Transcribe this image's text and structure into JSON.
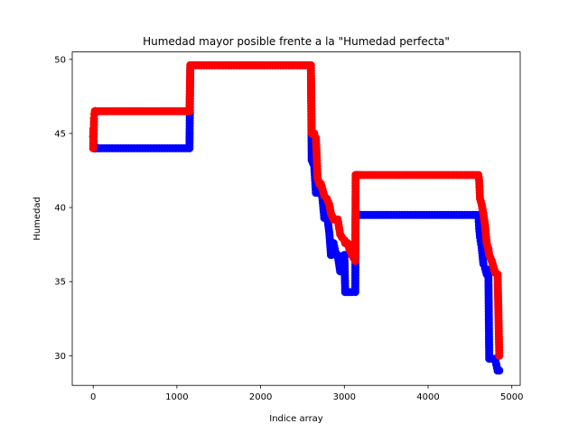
{
  "chart_data": {
    "type": "line",
    "title": "Humedad mayor posible frente a la \"Humedad perfecta\"",
    "xlabel": "Indice array",
    "ylabel": "Humedad",
    "xlim": [
      -250,
      5100
    ],
    "ylim": [
      28,
      50.5
    ],
    "xticks": [
      0,
      1000,
      2000,
      3000,
      4000,
      5000
    ],
    "yticks": [
      30,
      35,
      40,
      45,
      50
    ],
    "grid": false,
    "legend": "none",
    "series": [
      {
        "color": "#0000ff",
        "marker": "circle",
        "x": [
          0,
          3,
          6,
          10,
          15,
          20,
          25,
          30,
          1150,
          1160,
          2600,
          2610,
          2640,
          2660,
          2680,
          2700,
          2720,
          2740,
          2760,
          2790,
          2820,
          2840,
          2870,
          2900,
          2920,
          2950,
          2970,
          3000,
          3010,
          3040,
          3060,
          3090,
          3130,
          3135,
          3150,
          3160,
          3180,
          3200,
          4600,
          4610,
          4620,
          4640,
          4660,
          4680,
          4700,
          4720,
          4730,
          4760,
          4800,
          4830,
          4850
        ],
        "y": [
          44.8,
          45.0,
          44.5,
          44.2,
          44.0,
          44.0,
          44.0,
          44.0,
          44.0,
          49.6,
          49.6,
          43.2,
          42.8,
          41.0,
          41.0,
          41.5,
          41.5,
          40.5,
          39.3,
          39.6,
          38.3,
          36.8,
          37.6,
          36.8,
          36.8,
          35.7,
          35.7,
          36.8,
          34.3,
          34.3,
          34.3,
          34.3,
          34.3,
          39.8,
          39.5,
          39.5,
          39.5,
          39.5,
          39.5,
          38.6,
          38.0,
          37.3,
          36.2,
          35.9,
          35.5,
          35.8,
          29.8,
          29.8,
          29.8,
          29.0,
          29.0
        ]
      },
      {
        "color": "#ff0000",
        "marker": "circle",
        "x": [
          0,
          3,
          6,
          10,
          15,
          20,
          25,
          30,
          1150,
          1160,
          2600,
          2610,
          2640,
          2660,
          2680,
          2700,
          2720,
          2740,
          2760,
          2790,
          2820,
          2840,
          2870,
          2900,
          2920,
          2950,
          2970,
          3000,
          3010,
          3040,
          3060,
          3090,
          3130,
          3135,
          3150,
          3160,
          3180,
          3200,
          4600,
          4610,
          4620,
          4640,
          4660,
          4680,
          4700,
          4720,
          4730,
          4760,
          4800,
          4830,
          4850
        ],
        "y": [
          44.0,
          45.3,
          44.8,
          46.0,
          46.3,
          46.5,
          46.5,
          46.5,
          46.5,
          49.6,
          49.6,
          45.0,
          45.0,
          44.7,
          42.0,
          41.6,
          41.6,
          41.2,
          40.8,
          40.6,
          40.2,
          39.6,
          39.2,
          39.2,
          39.2,
          38.2,
          38.0,
          37.8,
          37.6,
          37.6,
          37.2,
          36.8,
          36.4,
          42.2,
          42.2,
          42.2,
          42.2,
          42.2,
          42.2,
          41.8,
          40.6,
          40.2,
          39.6,
          38.8,
          37.6,
          37.2,
          36.8,
          36.4,
          35.6,
          35.5,
          30.0
        ]
      }
    ]
  }
}
